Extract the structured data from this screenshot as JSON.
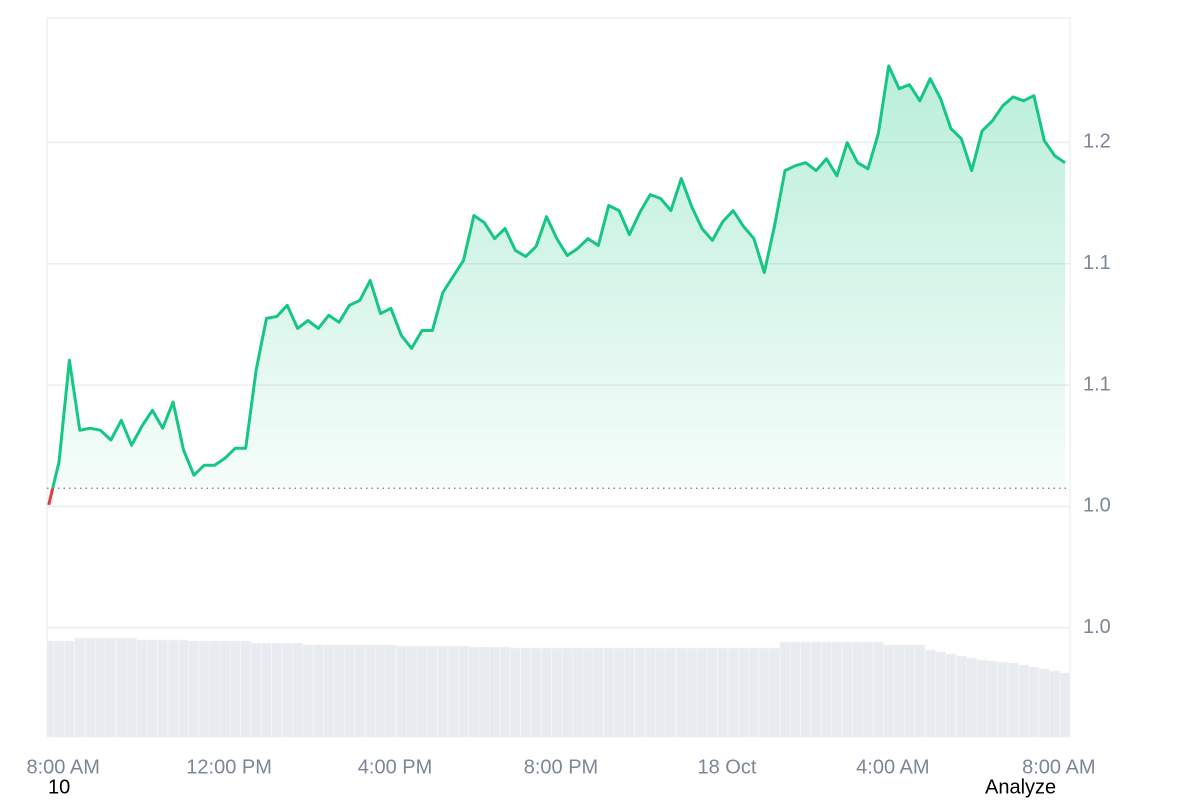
{
  "chart_data": {
    "type": "line",
    "x": [
      -0.35,
      -0.1,
      0.15,
      0.4,
      0.65,
      0.9,
      1.15,
      1.4,
      1.65,
      1.9,
      2.15,
      2.4,
      2.65,
      2.9,
      3.15,
      3.4,
      3.65,
      3.9,
      4.15,
      4.4,
      4.65,
      4.9,
      5.15,
      5.4,
      5.65,
      5.9,
      6.15,
      6.4,
      6.65,
      6.9,
      7.15,
      7.4,
      7.65,
      7.9,
      8.15,
      8.4,
      8.65,
      8.9,
      9.15,
      9.4,
      9.65,
      9.9,
      10.15,
      10.4,
      10.65,
      10.9,
      11.15,
      11.4,
      11.65,
      11.9,
      12.15,
      12.4,
      12.65,
      12.9,
      13.15,
      13.4,
      13.65,
      13.9,
      14.15,
      14.4,
      14.65,
      14.9,
      15.15,
      15.4,
      15.65,
      15.9,
      16.15,
      16.4,
      16.65,
      16.9,
      17.15,
      17.4,
      17.65,
      17.9,
      18.15,
      18.4,
      18.65,
      18.9,
      19.15,
      19.4,
      19.65,
      19.9,
      20.15,
      20.4,
      20.65,
      20.9,
      21.15,
      21.4,
      21.65,
      21.9,
      22.15,
      22.4,
      22.65,
      22.9,
      23.15,
      23.4,
      23.65,
      23.9,
      24.15
    ],
    "series": [
      {
        "color": "#16c784",
        "values": [
          1.0405,
          1.0546,
          1.0882,
          1.0651,
          1.0658,
          1.0651,
          1.0619,
          1.0684,
          1.0602,
          1.0665,
          1.0717,
          1.0658,
          1.0744,
          1.0586,
          1.0503,
          1.0536,
          1.0536,
          1.0559,
          1.0592,
          1.0592,
          1.0849,
          1.102,
          1.1026,
          1.1063,
          1.0987,
          1.1013,
          1.0987,
          1.103,
          1.1007,
          1.1063,
          1.1079,
          1.1145,
          1.1036,
          1.1053,
          1.0964,
          1.0921,
          1.098,
          1.098,
          1.1105,
          1.1158,
          1.1211,
          1.1359,
          1.1336,
          1.1283,
          1.1316,
          1.1244,
          1.1224,
          1.1257,
          1.1355,
          1.1283,
          1.1227,
          1.125,
          1.1283,
          1.126,
          1.1392,
          1.1375,
          1.1296,
          1.1369,
          1.1428,
          1.1415,
          1.1375,
          1.1481,
          1.1388,
          1.1316,
          1.1277,
          1.1339,
          1.1375,
          1.1323,
          1.1283,
          1.1171,
          1.1326,
          1.1507,
          1.1523,
          1.1533,
          1.1507,
          1.1546,
          1.149,
          1.1599,
          1.1533,
          1.1513,
          1.1629,
          1.1852,
          1.1777,
          1.179,
          1.1737,
          1.181,
          1.1744,
          1.1645,
          1.1612,
          1.1507,
          1.1638,
          1.1671,
          1.1721,
          1.175,
          1.1737,
          1.1754,
          1.1606,
          1.1556,
          1.1533
        ]
      }
    ],
    "down_color": "#ea3943",
    "baseline": 1.046,
    "volume": {
      "color": "#e8ecf1",
      "vlim": [
        0,
        100
      ],
      "values": [
        96,
        96,
        96,
        99,
        99,
        99,
        99,
        99,
        99,
        97,
        97,
        97,
        97,
        97,
        96,
        96,
        96,
        96,
        96,
        96,
        94,
        94,
        94,
        94,
        94,
        92,
        92,
        92,
        92,
        92,
        92,
        92,
        92,
        92,
        91,
        91,
        91,
        91,
        91,
        91,
        91,
        90,
        90,
        90,
        90,
        89,
        89,
        89,
        89,
        89,
        89,
        89,
        89,
        89,
        89,
        89,
        89,
        89,
        89,
        89,
        89,
        89,
        89,
        89,
        89,
        89,
        89,
        89,
        89,
        89,
        89,
        95,
        95,
        95,
        95,
        95,
        95,
        95,
        95,
        95,
        95,
        92,
        92,
        92,
        92,
        87,
        85,
        83,
        81,
        79,
        77,
        76,
        75,
        74,
        72,
        70,
        68,
        66,
        64
      ]
    },
    "xlim": [
      -0.39,
      24.27
    ],
    "ylim": [
      0.964,
      1.201
    ],
    "xticks": [
      {
        "value": 0,
        "label": "8:00 AM"
      },
      {
        "value": 4,
        "label": "12:00 PM"
      },
      {
        "value": 8,
        "label": "4:00 PM"
      },
      {
        "value": 12,
        "label": "8:00 PM"
      },
      {
        "value": 16,
        "label": "18 Oct"
      },
      {
        "value": 20,
        "label": "4:00 AM"
      },
      {
        "value": 24,
        "label": "8:00 AM"
      }
    ],
    "yticks": [
      {
        "value": 1.0,
        "label": "1.0"
      },
      {
        "value": 1.04,
        "label": "1.0"
      },
      {
        "value": 1.08,
        "label": "1.1"
      },
      {
        "value": 1.12,
        "label": "1.1"
      },
      {
        "value": 1.16,
        "label": "1.2"
      }
    ],
    "grid": true
  },
  "footer": {
    "left": "10",
    "right": "Analyze"
  }
}
